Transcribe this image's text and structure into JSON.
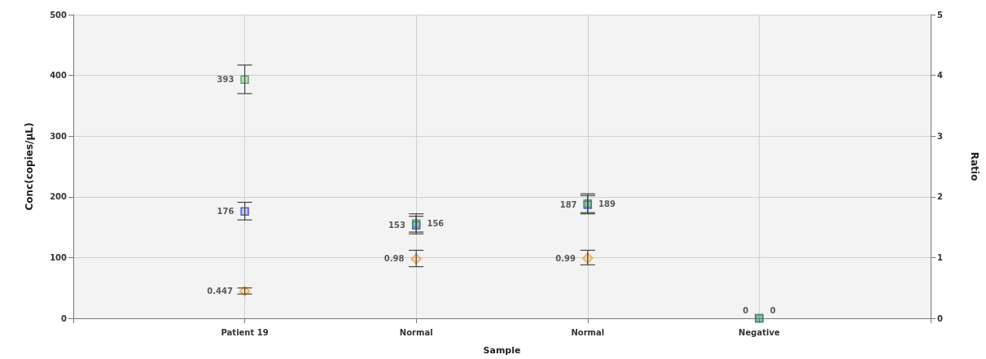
{
  "chart_data": {
    "type": "scatter",
    "xlabel": "Sample",
    "ylabel": "Conc(copies/µL)",
    "y2label": "Ratio",
    "categories": [
      null,
      "Patient 19",
      "Normal",
      "Normal",
      "Negative",
      null
    ],
    "series": [
      {
        "color": "#2f3fd8",
        "marker": "square",
        "values": [
          null,
          176,
          153,
          187,
          0,
          null
        ],
        "errors": [
          null,
          [
            162,
            191
          ],
          [
            139,
            168
          ],
          [
            172,
            202
          ],
          null,
          null
        ]
      },
      {
        "color": "#3a9a4a",
        "marker": "square",
        "values": [
          null,
          393,
          156,
          189,
          0,
          null
        ],
        "errors": [
          null,
          [
            370,
            417
          ],
          [
            142,
            172
          ],
          [
            174,
            205
          ],
          null,
          null
        ]
      },
      {
        "color": "#f0a030",
        "marker": "diamond",
        "axis": "y2",
        "values": [
          null,
          0.447,
          0.98,
          0.99,
          null,
          null
        ],
        "errors": [
          null,
          [
            0.4,
            0.5
          ],
          [
            0.85,
            1.12
          ],
          [
            0.88,
            1.12
          ],
          null,
          null
        ]
      }
    ],
    "ylim": [
      0,
      500
    ],
    "yticks": [
      0,
      100,
      200,
      300,
      400,
      500
    ],
    "y2lim": [
      0,
      5
    ],
    "y2ticks": [
      0,
      1,
      2,
      3,
      4,
      5
    ],
    "grid": true,
    "data_labels": true
  }
}
